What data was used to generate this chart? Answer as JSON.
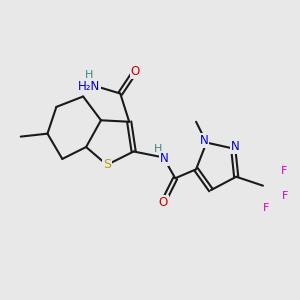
{
  "bg_color": "#e8e8e8",
  "bond_color": "#1a1a1a",
  "colors": {
    "N": "#0000cc",
    "O": "#cc0000",
    "S": "#b8a000",
    "F": "#dd00bb",
    "H": "#3a8888",
    "C": "#1a1a1a"
  },
  "lw": 1.5,
  "fs": 8.5,
  "figsize": [
    3.0,
    3.0
  ],
  "dpi": 100
}
